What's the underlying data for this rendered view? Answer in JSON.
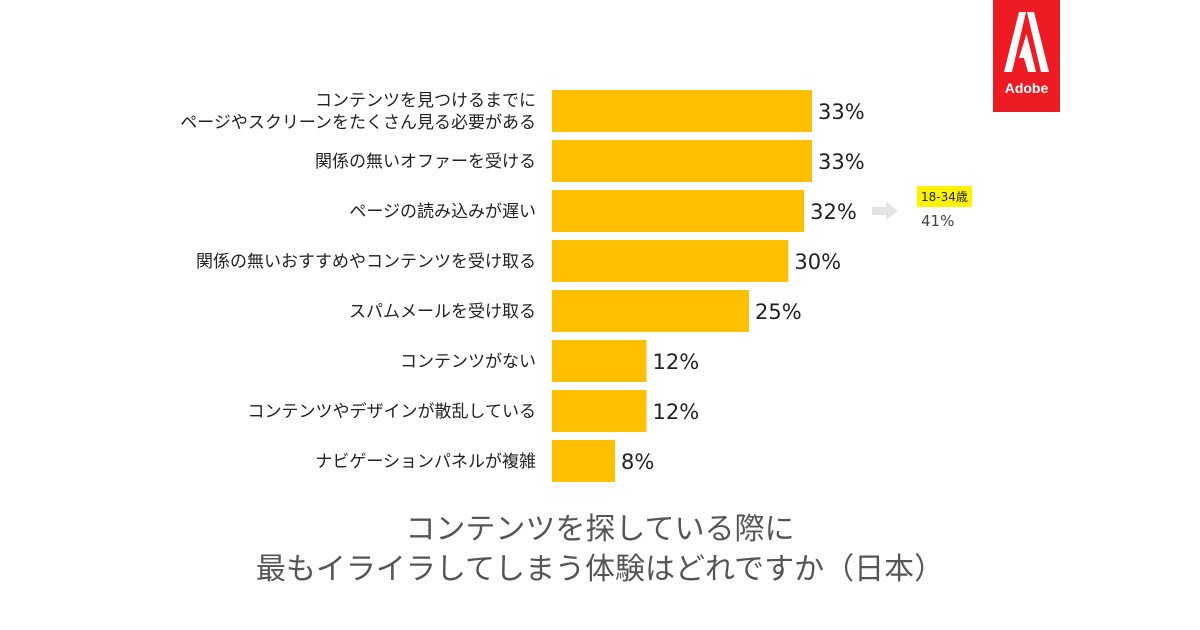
{
  "chart_data": {
    "type": "bar",
    "orientation": "horizontal",
    "categories": [
      [
        "コンテンツを見つけるまでに",
        "ページやスクリーンをたくさん見る必要がある"
      ],
      [
        "関係の無いオファーを受ける"
      ],
      [
        "ページの読み込みが遅い"
      ],
      [
        "関係の無いおすすめやコンテンツを受け取る"
      ],
      [
        "スパムメールを受け取る"
      ],
      [
        "コンテンツがない"
      ],
      [
        "コンテンツやデザインが散乱している"
      ],
      [
        "ナビゲーションパネルが複雑"
      ]
    ],
    "values": [
      33,
      33,
      32,
      30,
      25,
      12,
      12,
      8
    ],
    "value_labels": [
      "33%",
      "33%",
      "32%",
      "30%",
      "25%",
      "12%",
      "12%",
      "8%"
    ],
    "xlim": [
      0,
      33
    ],
    "bar_color": "#FFC000",
    "grid": false,
    "annotation": {
      "category_index": 2,
      "group": "18-34歳",
      "value_label": "41%"
    },
    "title_lines": [
      "コンテンツを探している際に",
      "最もイライラしてしまう体験はどれですか（日本）"
    ]
  },
  "logo": {
    "brand": "Adobe",
    "color": "#ED1C24"
  }
}
